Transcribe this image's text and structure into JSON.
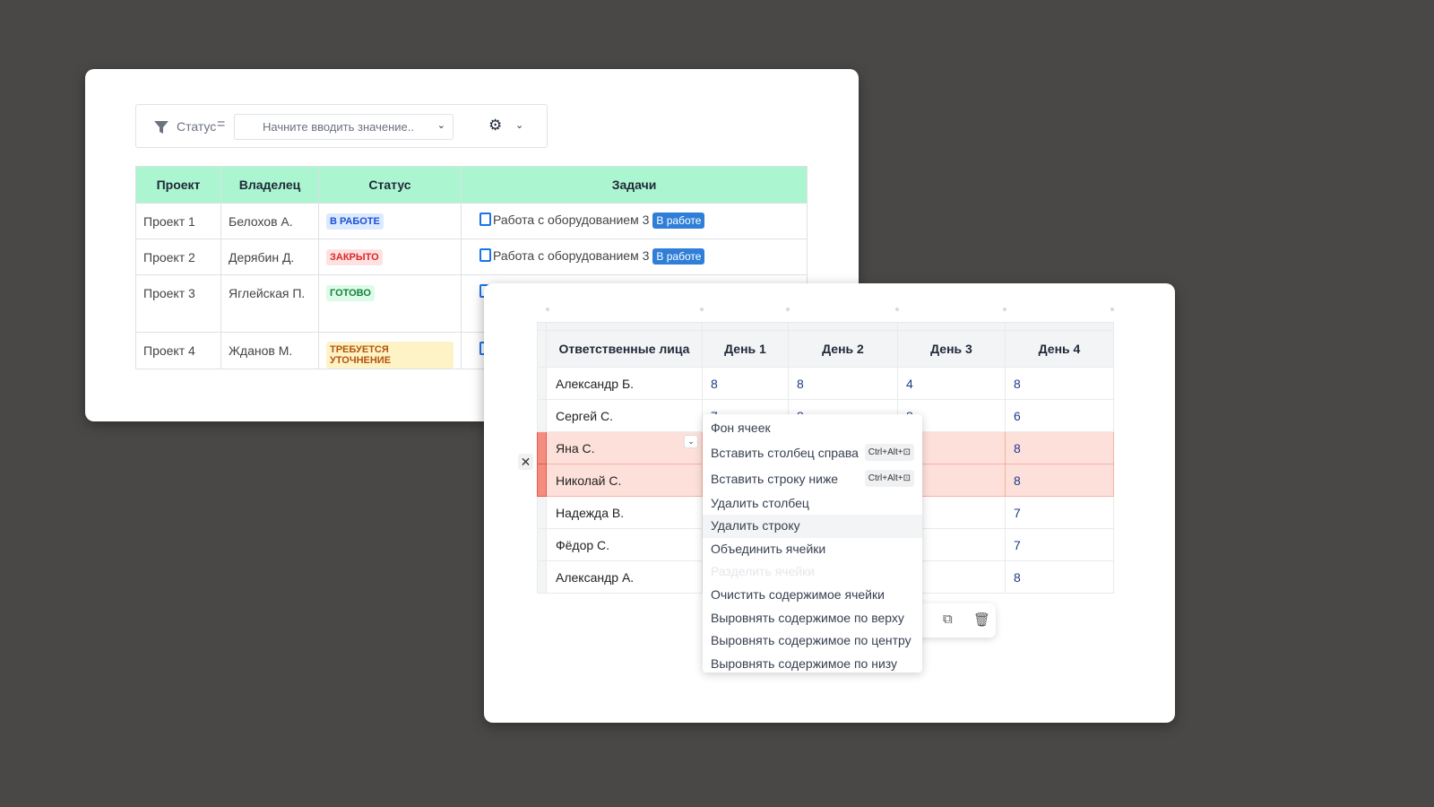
{
  "filter": {
    "label": "Статус",
    "operator": "=",
    "placeholder": "Начните вводить значение..",
    "chevron": "⌄"
  },
  "projects": {
    "headers": [
      "Проект",
      "Владелец",
      "Статус",
      "Задачи"
    ],
    "rows": [
      {
        "project": "Проект 1",
        "owner": "Белохов А.",
        "status": "В РАБОТЕ",
        "status_bg": "#dbeafe",
        "status_color": "#1d4ed8",
        "task": "Работа с оборудованием 3",
        "task_badge": "В работе"
      },
      {
        "project": "Проект 2",
        "owner": "Дерябин Д.",
        "status": "ЗАКРЫТО",
        "status_bg": "#fee2e2",
        "status_color": "#dc2626",
        "task": "Работа с оборудованием 3",
        "task_badge": "В работе"
      },
      {
        "project": "Проект 3",
        "owner": "Яглейская П.",
        "status": "ГОТОВО",
        "status_bg": "#dcfce7",
        "status_color": "#15803d"
      },
      {
        "project": "Проект 4",
        "owner": "Жданов М.",
        "status": "ТРЕБУЕТСЯ УТОЧНЕНИЕ",
        "status_bg": "#fef3c7",
        "status_color": "#b45309"
      }
    ]
  },
  "hours": {
    "headers": [
      "Ответственные лица",
      "День 1",
      "День 2",
      "День 3",
      "День 4"
    ],
    "rows": [
      {
        "name": "Александр Б.",
        "d1": "8",
        "d2": "8",
        "d3": "4",
        "d4": "8"
      },
      {
        "name": "Сергей С.",
        "d1": "7",
        "d2": "8",
        "d3": "8",
        "d4": "6"
      },
      {
        "name": "Яна С.",
        "d4": "8"
      },
      {
        "name": "Николай С.",
        "d4": "8"
      },
      {
        "name": "Надежда В.",
        "d4": "7"
      },
      {
        "name": "Фёдор С.",
        "d4": "7"
      },
      {
        "name": "Александр А.",
        "d4": "8"
      }
    ]
  },
  "close_button": "✕",
  "context_menu": [
    {
      "label": "Фон ячеек"
    },
    {
      "label": "Вставить столбец справа",
      "shortcut": "Ctrl+Alt+⊡"
    },
    {
      "label": "Вставить строку ниже",
      "shortcut": "Ctrl+Alt+⊡"
    },
    {
      "label": "Удалить столбец"
    },
    {
      "label": "Удалить строку"
    },
    {
      "label": "Объединить ячейки"
    },
    {
      "label": "Разделить ячейки"
    },
    {
      "label": "Очистить содержимое ячейки"
    },
    {
      "label": "Выровнять содержимое по верху"
    },
    {
      "label": "Выровнять содержимое по центру"
    },
    {
      "label": "Выровнять содержимое по низу"
    }
  ]
}
